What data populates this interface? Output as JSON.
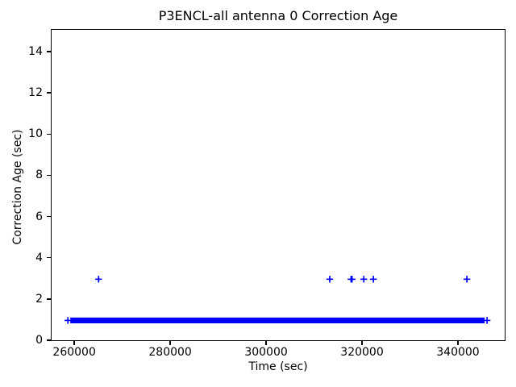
{
  "figure": {
    "background": "#ffffff"
  },
  "chart_data": {
    "type": "scatter",
    "title": "P3ENCL-all antenna 0 Correction Age",
    "xlabel": "Time (sec)",
    "ylabel": "Correction Age (sec)",
    "marker": "+",
    "marker_color": "#0000ff",
    "axis_color": "#000000",
    "grid": false,
    "legend": null,
    "xlim": [
      255100,
      349750
    ],
    "ylim": [
      0,
      15.1
    ],
    "xticks": [
      260000,
      280000,
      300000,
      320000,
      340000
    ],
    "xtick_labels": [
      "260000",
      "280000",
      "300000",
      "320000",
      "340000"
    ],
    "yticks": [
      0,
      2,
      4,
      6,
      8,
      10,
      12,
      14
    ],
    "ytick_labels": [
      "0",
      "2",
      "4",
      "6",
      "8",
      "10",
      "12",
      "14"
    ],
    "series": [
      {
        "name": "antenna-0-correction-age",
        "dense_band": {
          "y": 1,
          "x_start": 259000,
          "x_end": 345400,
          "description": "continuous dense run of '+' markers at correction age ~1 sec"
        },
        "sparse_points": [
          {
            "x": 258500,
            "y": 1
          },
          {
            "x": 345900,
            "y": 1
          },
          {
            "x": 264900,
            "y": 3
          },
          {
            "x": 313100,
            "y": 3
          },
          {
            "x": 317550,
            "y": 3
          },
          {
            "x": 317750,
            "y": 3
          },
          {
            "x": 320200,
            "y": 3
          },
          {
            "x": 322200,
            "y": 3
          },
          {
            "x": 341700,
            "y": 3
          }
        ]
      }
    ]
  }
}
